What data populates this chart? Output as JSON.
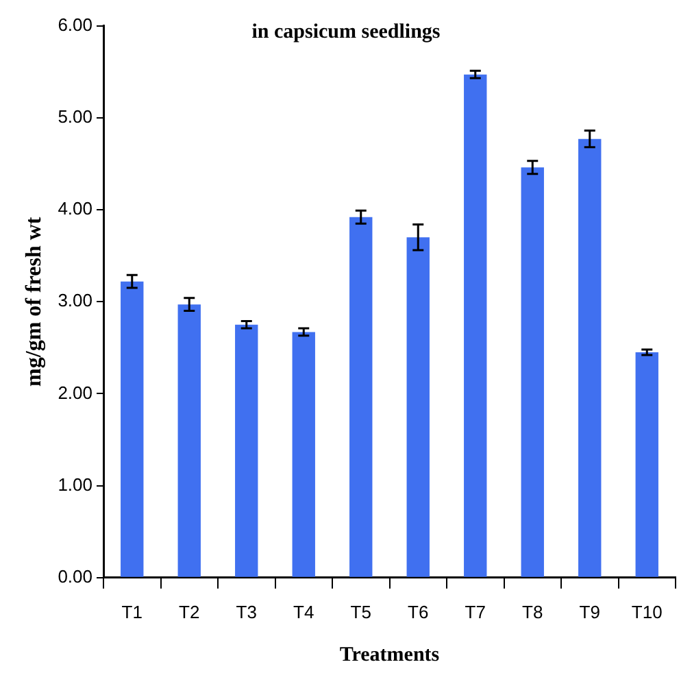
{
  "chart_data": {
    "type": "bar",
    "title": "in capsicum seedlings",
    "xlabel": "Treatments",
    "ylabel": "mg/gm of fresh wt",
    "categories": [
      "T1",
      "T2",
      "T3",
      "T4",
      "T5",
      "T6",
      "T7",
      "T8",
      "T9",
      "T10"
    ],
    "values": [
      3.22,
      2.97,
      2.75,
      2.67,
      3.92,
      3.7,
      5.47,
      4.46,
      4.77,
      2.45
    ],
    "errors": [
      0.07,
      0.07,
      0.04,
      0.04,
      0.07,
      0.14,
      0.04,
      0.07,
      0.09,
      0.03
    ],
    "color": "#4070f0",
    "ylim": [
      0,
      6
    ],
    "yticks": [
      {
        "value": 0,
        "label": "0.00"
      },
      {
        "value": 1,
        "label": "1.00"
      },
      {
        "value": 2,
        "label": "2.00"
      },
      {
        "value": 3,
        "label": "3.00"
      },
      {
        "value": 4,
        "label": "4.00"
      },
      {
        "value": 5,
        "label": "5.00"
      },
      {
        "value": 6,
        "label": "6.00"
      }
    ],
    "grid": false,
    "legend": false
  }
}
